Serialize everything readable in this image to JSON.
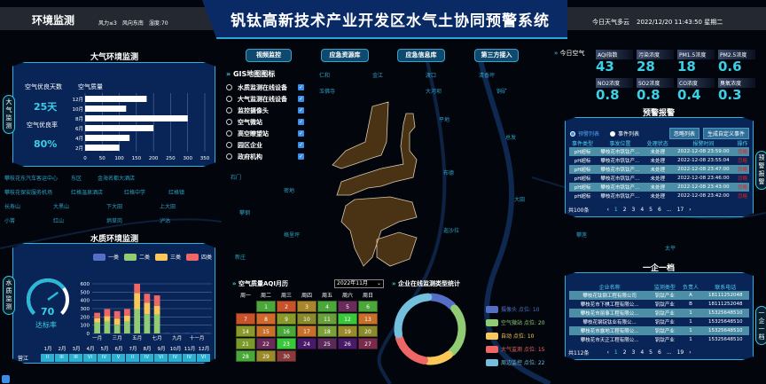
{
  "header": {
    "section": "环境监测",
    "wind_force": "风力≤3",
    "wind_dir": "风向东南",
    "humidity": "湿度:70",
    "title": "钒钛高新技术产业开发区水气土协同预警系统",
    "weather": "今日天气多云",
    "datetime": "2022/12/20 11:43:50 星期二"
  },
  "map_labels": [
    "攀枝花东汽车客运中心",
    "东区",
    "金海名都大酒店",
    "攀枝花保安服务机场",
    "红格温泉酒店",
    "红格中学",
    "红格镇",
    "长寿山",
    "大黑山",
    "下大田",
    "上大田",
    "小箐",
    "红山",
    "炳草岗",
    "泸沽",
    "仁和",
    "金江",
    "渡口",
    "清香坪",
    "玉佛寺",
    "大河坝",
    "铜矿",
    "石门",
    "密地",
    "攀钢",
    "格里坪",
    "新庄",
    "平地",
    "总发",
    "布德",
    "大田",
    "迤沙拉",
    "攀莲",
    "太平"
  ],
  "nav": [
    "视频监控",
    "应急资源库",
    "应急信息库",
    "第三方接入"
  ],
  "side_tabs": {
    "air": "大气监测",
    "water": "水质监测",
    "alert": "预警报警",
    "enterprise": "一企一档"
  },
  "gis": {
    "title": "GIS地图图标",
    "items": [
      {
        "label": "水质监测在线设备",
        "checked": true
      },
      {
        "label": "大气监测在线设备",
        "checked": true
      },
      {
        "label": "监控摄像头",
        "checked": true
      },
      {
        "label": "空气微站",
        "checked": true
      },
      {
        "label": "高空瞭望站",
        "checked": true
      },
      {
        "label": "园区企业",
        "checked": true
      },
      {
        "label": "政府机构",
        "checked": true
      }
    ]
  },
  "air": {
    "title": "大气环境监测",
    "good_days_label": "空气优良天数",
    "good_days": "25天",
    "good_rate_label": "空气优良率",
    "good_rate": "80%",
    "chart_data": {
      "type": "bar",
      "orientation": "horizontal",
      "title": "空气质量",
      "categories": [
        "12月",
        "10月",
        "8月",
        "6月",
        "4月",
        "2月"
      ],
      "values": [
        180,
        120,
        300,
        200,
        130,
        100
      ],
      "xlim": [
        0,
        350
      ],
      "xticks": [
        "0",
        "50",
        "100",
        "150",
        "200",
        "250",
        "300",
        "350"
      ],
      "grid": true
    }
  },
  "water": {
    "title": "水质环境监测",
    "gauge_value": "70",
    "gauge_fraction": 0.7,
    "gauge_label": "达标率",
    "chart_data": {
      "type": "bar",
      "stacked": true,
      "categories": [
        "1",
        "2",
        "3",
        "4",
        "5",
        "6",
        "7",
        "8",
        "9",
        "10",
        "11",
        "12"
      ],
      "xtick_labels": [
        "一月",
        "三月",
        "五月",
        "七月",
        "九月",
        "十一月"
      ],
      "ylim": [
        0,
        600
      ],
      "yticks": [
        "0",
        "100",
        "200",
        "300",
        "400",
        "500",
        "600"
      ],
      "legend_position": "top",
      "series": [
        {
          "name": "一类",
          "color": "#5470c6",
          "values": [
            0,
            0,
            0,
            0,
            0,
            0,
            0,
            5,
            5,
            5,
            5,
            5
          ]
        },
        {
          "name": "二类",
          "color": "#91cc75",
          "values": [
            130,
            145,
            105,
            145,
            295,
            235,
            230,
            0,
            0,
            0,
            0,
            0
          ]
        },
        {
          "name": "三类",
          "color": "#fac858",
          "values": [
            55,
            65,
            75,
            70,
            195,
            135,
            105,
            0,
            0,
            0,
            0,
            0
          ]
        },
        {
          "name": "四类",
          "color": "#ee6666",
          "values": [
            65,
            85,
            90,
            80,
            110,
            110,
            125,
            0,
            0,
            0,
            0,
            0
          ]
        }
      ]
    },
    "table": {
      "row_label": "营江",
      "months": [
        "1月",
        "2月",
        "3月",
        "4月",
        "5月",
        "6月",
        "7月",
        "8月",
        "9月",
        "10月",
        "11月",
        "12月"
      ],
      "grades": [
        "II",
        "III",
        "III",
        "VI",
        "IV",
        "V",
        "II",
        "IV",
        "VI",
        "IV",
        "IV",
        "VI"
      ]
    }
  },
  "today_air": {
    "title": "今日空气",
    "items": [
      {
        "label": "AQI指数",
        "value": "43"
      },
      {
        "label": "污染浓度",
        "value": "28"
      },
      {
        "label": "PM1.5浓度",
        "value": "18"
      },
      {
        "label": "PM2.5浓度",
        "value": "0.6"
      },
      {
        "label": "NO2浓度",
        "value": "0.8"
      },
      {
        "label": "SO2浓度",
        "value": "0.8"
      },
      {
        "label": "CO浓度",
        "value": "0.4"
      },
      {
        "label": "臭氧浓度",
        "value": "0.3"
      }
    ]
  },
  "alert": {
    "title": "预警报警",
    "radio1": "预警列表",
    "radio2": "事件列表",
    "btn_ignore": "忽略列表",
    "btn_custom": "生成自定义事件",
    "columns": [
      "事件类型",
      "事发位置",
      "处理状态",
      "报警时间",
      "操作"
    ],
    "rows": [
      [
        "pH超标",
        "攀枝花市钒钛产...",
        "未处理",
        "2022-12-08 23:59:00",
        "忽略"
      ],
      [
        "pH超标",
        "攀枝花市钒钛产...",
        "未处理",
        "2022-12-08 23:55:04",
        "忽略"
      ],
      [
        "pH超标",
        "攀枝花市钒钛产...",
        "未处理",
        "2022-12-08 23:47:00",
        "忽略"
      ],
      [
        "pH超标",
        "攀枝花市钒钛产...",
        "未处理",
        "2022-12-08 23:46:00",
        "忽略"
      ],
      [
        "pH超标",
        "攀枝花市钒钛产...",
        "未处理",
        "2022-12-08 23:43:00",
        "忽略"
      ],
      [
        "pH超标",
        "攀枝花市钒钛产...",
        "未处理",
        "2022-12-08 23:42:00",
        "忽略"
      ]
    ],
    "total": "共100条",
    "pages": [
      "1",
      "2",
      "3",
      "4",
      "5",
      "6",
      "...",
      "17"
    ],
    "current_page": "1"
  },
  "enterprise": {
    "title": "一企一档",
    "columns": [
      "企业名称",
      "监测类型",
      "负责人",
      "联系电话"
    ],
    "rows": [
      [
        "攀枝花钛钢工程有限公司",
        "钒钛产业",
        "A",
        "18111252048"
      ],
      [
        "攀枝花市下棋工程有限公...",
        "钒钛产业",
        "B",
        "18111252048"
      ],
      [
        "攀枝花市丽事工程有限公...",
        "钒钛产业",
        "1",
        "15325648510"
      ],
      [
        "攀枝花钢锭钛业有限公...",
        "钒钛产业",
        "1",
        "15325648510"
      ],
      [
        "攀枝花市露地工程有限公...",
        "钒钛产业",
        "1",
        "15325648510"
      ],
      [
        "攀枝花市天正工程有限公...",
        "钒钛产业",
        "1",
        "15325648510"
      ]
    ],
    "total": "共112条",
    "pages": [
      "1",
      "2",
      "3",
      "4",
      "5",
      "6",
      "...",
      "19"
    ],
    "current_page": "1"
  },
  "calendar": {
    "title": "空气质量AQI月历",
    "month_select": "2022年11月",
    "weekdays": [
      "周一",
      "周二",
      "周三",
      "周四",
      "周五",
      "周六",
      "周日"
    ],
    "first_weekday": 2,
    "days": [
      {
        "d": "1",
        "c": "#4aa83a"
      },
      {
        "d": "2",
        "c": "#c8522a"
      },
      {
        "d": "3",
        "c": "#a8862a"
      },
      {
        "d": "4",
        "c": "#4aa83a"
      },
      {
        "d": "5",
        "c": "#6a2a5a"
      },
      {
        "d": "6",
        "c": "#4aa83a"
      },
      {
        "d": "7",
        "c": "#c8522a"
      },
      {
        "d": "8",
        "c": "#d06a2a"
      },
      {
        "d": "9",
        "c": "#8a9a2a"
      },
      {
        "d": "10",
        "c": "#8a8a2a"
      },
      {
        "d": "11",
        "c": "#6aa03a"
      },
      {
        "d": "12",
        "c": "#3ac83a"
      },
      {
        "d": "13",
        "c": "#c8702a"
      },
      {
        "d": "14",
        "c": "#8a9a2a"
      },
      {
        "d": "15",
        "c": "#c8702a"
      },
      {
        "d": "16",
        "c": "#4aa83a"
      },
      {
        "d": "17",
        "c": "#c8702a"
      },
      {
        "d": "18",
        "c": "#7aa03a"
      },
      {
        "d": "19",
        "c": "#9a8a2a"
      },
      {
        "d": "20",
        "c": "#8a8a2a"
      },
      {
        "d": "21",
        "c": "#7a9a2a"
      },
      {
        "d": "22",
        "c": "#6a2a5a"
      },
      {
        "d": "23",
        "c": "#3ac83a"
      },
      {
        "d": "24",
        "c": "#4a1a6a"
      },
      {
        "d": "25",
        "c": "#5a2a5a"
      },
      {
        "d": "26",
        "c": "#4a1a6a"
      },
      {
        "d": "27",
        "c": "#7a2a4a"
      },
      {
        "d": "28",
        "c": "#4aa83a"
      },
      {
        "d": "29",
        "c": "#9a8a2a"
      },
      {
        "d": "30",
        "c": "#8a3a3a"
      }
    ]
  },
  "monitor": {
    "title": "企业在线监测类型统计",
    "chart_data": {
      "type": "pie",
      "donut": true,
      "legend_position": "right",
      "series": [
        {
          "name": "摄像头",
          "label": "摄像头 点位: 10",
          "value": 10,
          "color": "#5470c6"
        },
        {
          "name": "空气微站",
          "label": "空气微站 点位: 20",
          "value": 20,
          "color": "#91cc75"
        },
        {
          "name": "自动",
          "label": "自动 点位: 10",
          "value": 10,
          "color": "#fac858"
        },
        {
          "name": "大气监测",
          "label": "大气监测 点位: 15",
          "value": 15,
          "color": "#ee6666"
        },
        {
          "name": "周边监控",
          "label": "周边监控 点位: 22",
          "value": 22,
          "color": "#73c0de"
        }
      ]
    }
  }
}
